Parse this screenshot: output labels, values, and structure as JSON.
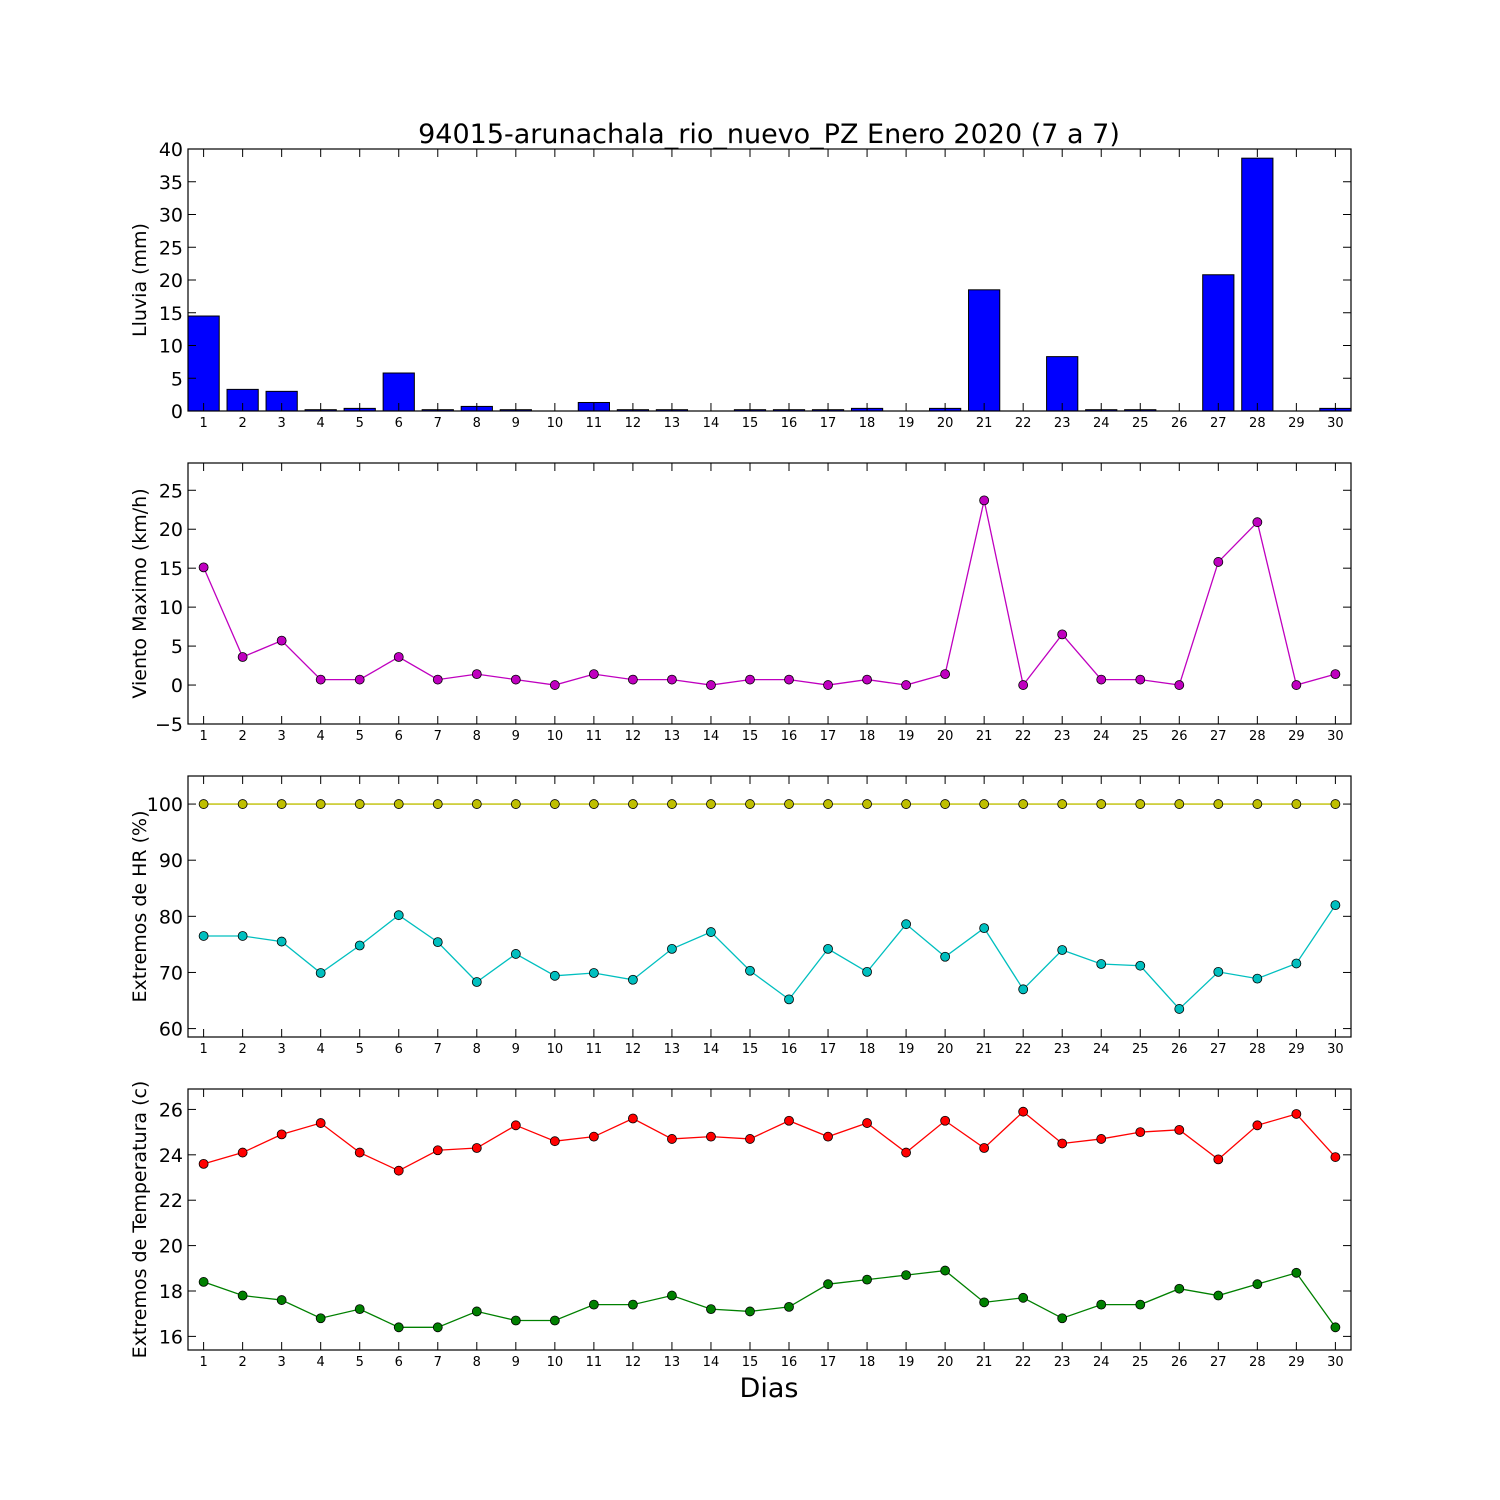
{
  "figure": {
    "title": "94015-arunachala_rio_nuevo_PZ Enero 2020  (7 a 7)",
    "xlabel": "Dias"
  },
  "chart_data": [
    {
      "type": "bar",
      "ylabel": "Lluvia (mm)",
      "ylim": [
        0,
        40
      ],
      "yticks": [
        0,
        5,
        10,
        15,
        20,
        25,
        30,
        35,
        40
      ],
      "xticks": [
        1,
        2,
        3,
        4,
        5,
        6,
        7,
        8,
        9,
        10,
        11,
        12,
        13,
        14,
        15,
        16,
        17,
        18,
        19,
        20,
        21,
        22,
        23,
        24,
        25,
        26,
        27,
        28,
        29,
        30
      ],
      "grid": false,
      "series": [
        {
          "color": "#0000ff",
          "x": [
            1,
            2,
            3,
            4,
            5,
            6,
            7,
            8,
            9,
            10,
            11,
            12,
            13,
            14,
            15,
            16,
            17,
            18,
            19,
            20,
            21,
            22,
            23,
            24,
            25,
            26,
            27,
            28,
            29,
            30
          ],
          "values": [
            14.5,
            3.3,
            3.0,
            0.2,
            0.4,
            5.8,
            0.2,
            0.7,
            0.2,
            0,
            1.3,
            0.2,
            0.2,
            0,
            0.2,
            0.2,
            0.2,
            0.4,
            0,
            0.4,
            18.5,
            0,
            8.3,
            0.2,
            0.2,
            0,
            20.8,
            38.6,
            0,
            0.4
          ]
        }
      ]
    },
    {
      "type": "line",
      "ylabel": "Viento Maximo (km/h)",
      "ylim": [
        -5,
        28.5
      ],
      "yticks": [
        -5,
        0,
        5,
        10,
        15,
        20,
        25
      ],
      "xticks": [
        1,
        2,
        3,
        4,
        5,
        6,
        7,
        8,
        9,
        10,
        11,
        12,
        13,
        14,
        15,
        16,
        17,
        18,
        19,
        20,
        21,
        22,
        23,
        24,
        25,
        26,
        27,
        28,
        29,
        30
      ],
      "grid": false,
      "series": [
        {
          "color": "#bf00bf",
          "x": [
            1,
            2,
            3,
            4,
            5,
            6,
            7,
            8,
            9,
            10,
            11,
            12,
            13,
            14,
            15,
            16,
            17,
            18,
            19,
            20,
            21,
            22,
            23,
            24,
            25,
            26,
            27,
            28,
            29,
            30
          ],
          "values": [
            15.1,
            3.6,
            5.7,
            0.7,
            0.7,
            3.6,
            0.7,
            1.4,
            0.7,
            0,
            1.4,
            0.7,
            0.7,
            0,
            0.7,
            0.7,
            0,
            0.7,
            0,
            1.4,
            23.7,
            0,
            6.5,
            0.7,
            0.7,
            0,
            15.8,
            20.9,
            0,
            1.4
          ]
        }
      ]
    },
    {
      "type": "line",
      "ylabel": "Extremos de HR (%)",
      "ylim": [
        58.5,
        105
      ],
      "yticks": [
        60,
        70,
        80,
        90,
        100
      ],
      "xticks": [
        1,
        2,
        3,
        4,
        5,
        6,
        7,
        8,
        9,
        10,
        11,
        12,
        13,
        14,
        15,
        16,
        17,
        18,
        19,
        20,
        21,
        22,
        23,
        24,
        25,
        26,
        27,
        28,
        29,
        30
      ],
      "grid": false,
      "series": [
        {
          "color": "#bfbf00",
          "x": [
            1,
            2,
            3,
            4,
            5,
            6,
            7,
            8,
            9,
            10,
            11,
            12,
            13,
            14,
            15,
            16,
            17,
            18,
            19,
            20,
            21,
            22,
            23,
            24,
            25,
            26,
            27,
            28,
            29,
            30
          ],
          "values": [
            100,
            100,
            100,
            100,
            100,
            100,
            100,
            100,
            100,
            100,
            100,
            100,
            100,
            100,
            100,
            100,
            100,
            100,
            100,
            100,
            100,
            100,
            100,
            100,
            100,
            100,
            100,
            100,
            100,
            100
          ]
        },
        {
          "color": "#00bfbf",
          "x": [
            1,
            2,
            3,
            4,
            5,
            6,
            7,
            8,
            9,
            10,
            11,
            12,
            13,
            14,
            15,
            16,
            17,
            18,
            19,
            20,
            21,
            22,
            23,
            24,
            25,
            26,
            27,
            28,
            29,
            30
          ],
          "values": [
            76.5,
            76.5,
            75.5,
            69.9,
            74.8,
            80.2,
            75.4,
            68.3,
            73.3,
            69.4,
            69.9,
            68.7,
            74.2,
            77.2,
            70.3,
            65.2,
            74.2,
            70.1,
            78.6,
            72.8,
            77.9,
            67.0,
            74.0,
            71.5,
            71.2,
            63.5,
            70.1,
            68.9,
            71.6,
            82.0
          ]
        }
      ]
    },
    {
      "type": "line",
      "ylabel": "Extremos de Temperatura (c)",
      "ylim": [
        15.4,
        26.9
      ],
      "yticks": [
        16,
        18,
        20,
        22,
        24,
        26
      ],
      "xticks": [
        1,
        2,
        3,
        4,
        5,
        6,
        7,
        8,
        9,
        10,
        11,
        12,
        13,
        14,
        15,
        16,
        17,
        18,
        19,
        20,
        21,
        22,
        23,
        24,
        25,
        26,
        27,
        28,
        29,
        30
      ],
      "grid": false,
      "series": [
        {
          "color": "#ff0000",
          "x": [
            1,
            2,
            3,
            4,
            5,
            6,
            7,
            8,
            9,
            10,
            11,
            12,
            13,
            14,
            15,
            16,
            17,
            18,
            19,
            20,
            21,
            22,
            23,
            24,
            25,
            26,
            27,
            28,
            29,
            30
          ],
          "values": [
            23.6,
            24.1,
            24.9,
            25.4,
            24.1,
            23.3,
            24.2,
            24.3,
            25.3,
            24.6,
            24.8,
            25.6,
            24.7,
            24.8,
            24.7,
            25.5,
            24.8,
            25.4,
            24.1,
            25.5,
            24.3,
            25.9,
            24.5,
            24.7,
            25.0,
            25.1,
            23.8,
            25.3,
            25.8,
            23.9
          ]
        },
        {
          "color": "#008000",
          "x": [
            1,
            2,
            3,
            4,
            5,
            6,
            7,
            8,
            9,
            10,
            11,
            12,
            13,
            14,
            15,
            16,
            17,
            18,
            19,
            20,
            21,
            22,
            23,
            24,
            25,
            26,
            27,
            28,
            29,
            30
          ],
          "values": [
            18.4,
            17.8,
            17.6,
            16.8,
            17.2,
            16.4,
            16.4,
            17.1,
            16.7,
            16.7,
            17.4,
            17.4,
            17.8,
            17.2,
            17.1,
            17.3,
            18.3,
            18.5,
            18.7,
            18.9,
            17.5,
            17.7,
            16.8,
            17.4,
            17.4,
            18.1,
            17.8,
            18.3,
            18.8,
            16.4
          ]
        }
      ]
    }
  ]
}
